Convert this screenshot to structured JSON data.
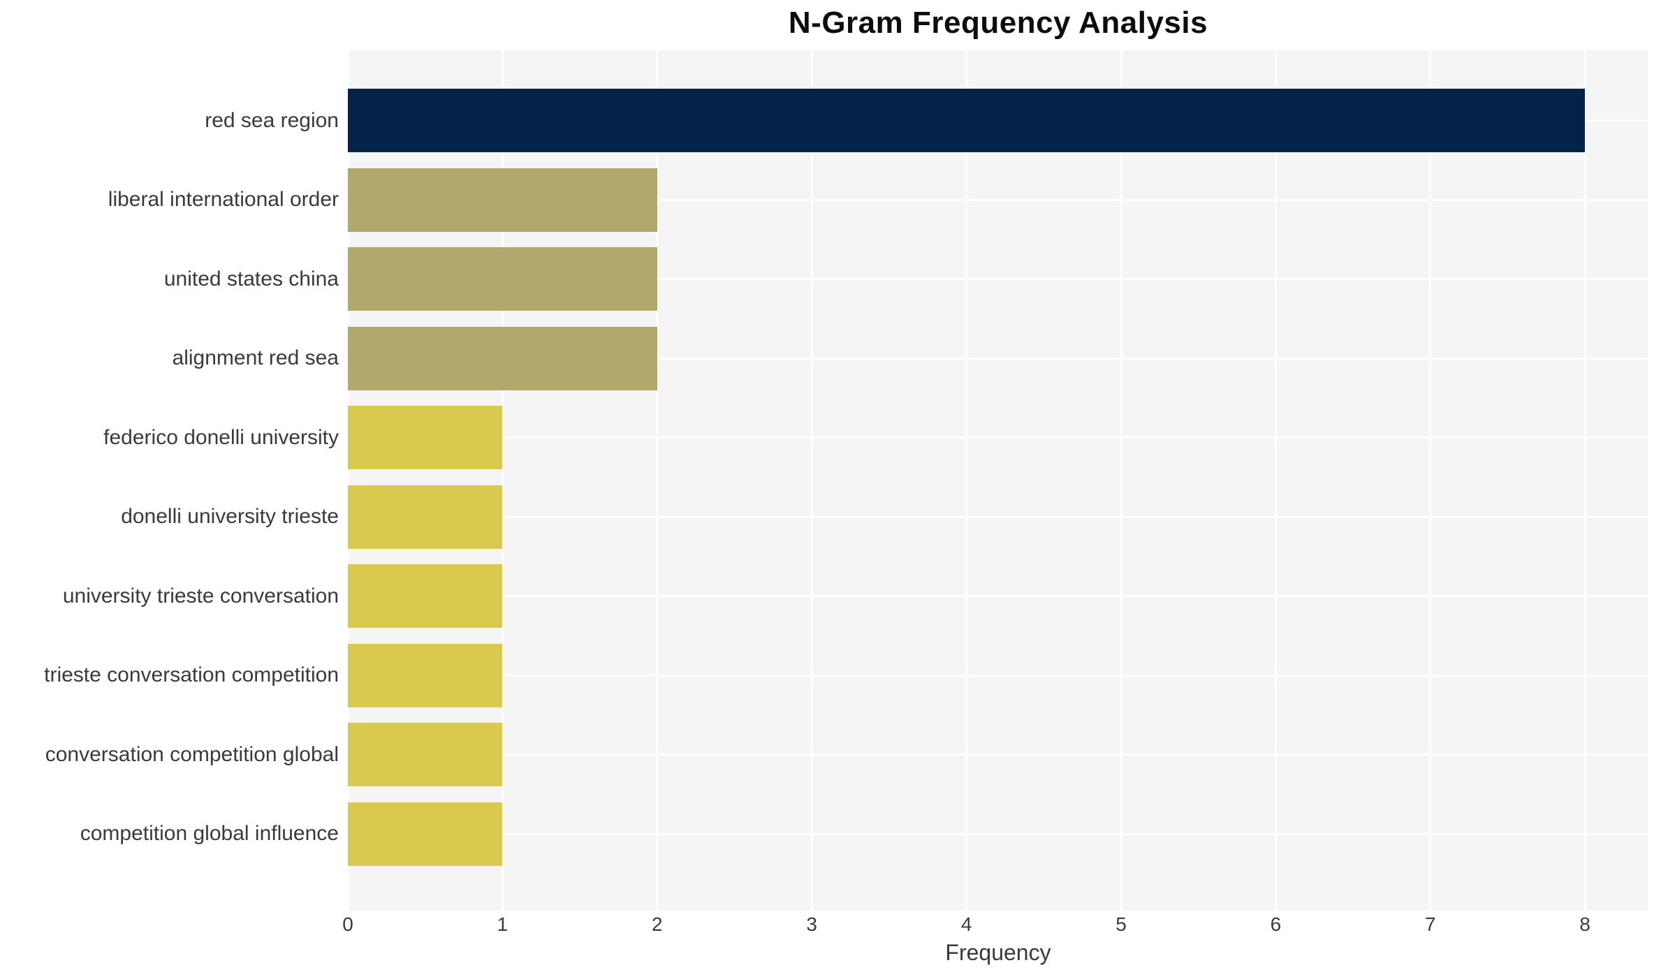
{
  "chart_data": {
    "type": "bar",
    "orientation": "horizontal",
    "title": "N-Gram Frequency Analysis",
    "xlabel": "Frequency",
    "ylabel": "",
    "categories": [
      "red sea region",
      "liberal international order",
      "united states china",
      "alignment red sea",
      "federico donelli university",
      "donelli university trieste",
      "university trieste conversation",
      "trieste conversation competition",
      "conversation competition global",
      "competition global influence"
    ],
    "values": [
      8,
      2,
      2,
      2,
      1,
      1,
      1,
      1,
      1,
      1
    ],
    "bar_colors": [
      "#03234b",
      "#b3a86b",
      "#b3a86b",
      "#b3a86b",
      "#dbc84f",
      "#dbc84f",
      "#dbc84f",
      "#dbc84f",
      "#dbc84f",
      "#dbc84f"
    ],
    "xticks": [
      "0",
      "1",
      "2",
      "3",
      "4",
      "5",
      "6",
      "7",
      "8"
    ],
    "xlim": [
      0,
      8.41
    ],
    "grid": true,
    "grid_color": "#ffffff",
    "plot_background": "#f5f5f6",
    "text_color": "#3a3a3a",
    "title_color": "#0d0d0d",
    "legend": "none"
  }
}
